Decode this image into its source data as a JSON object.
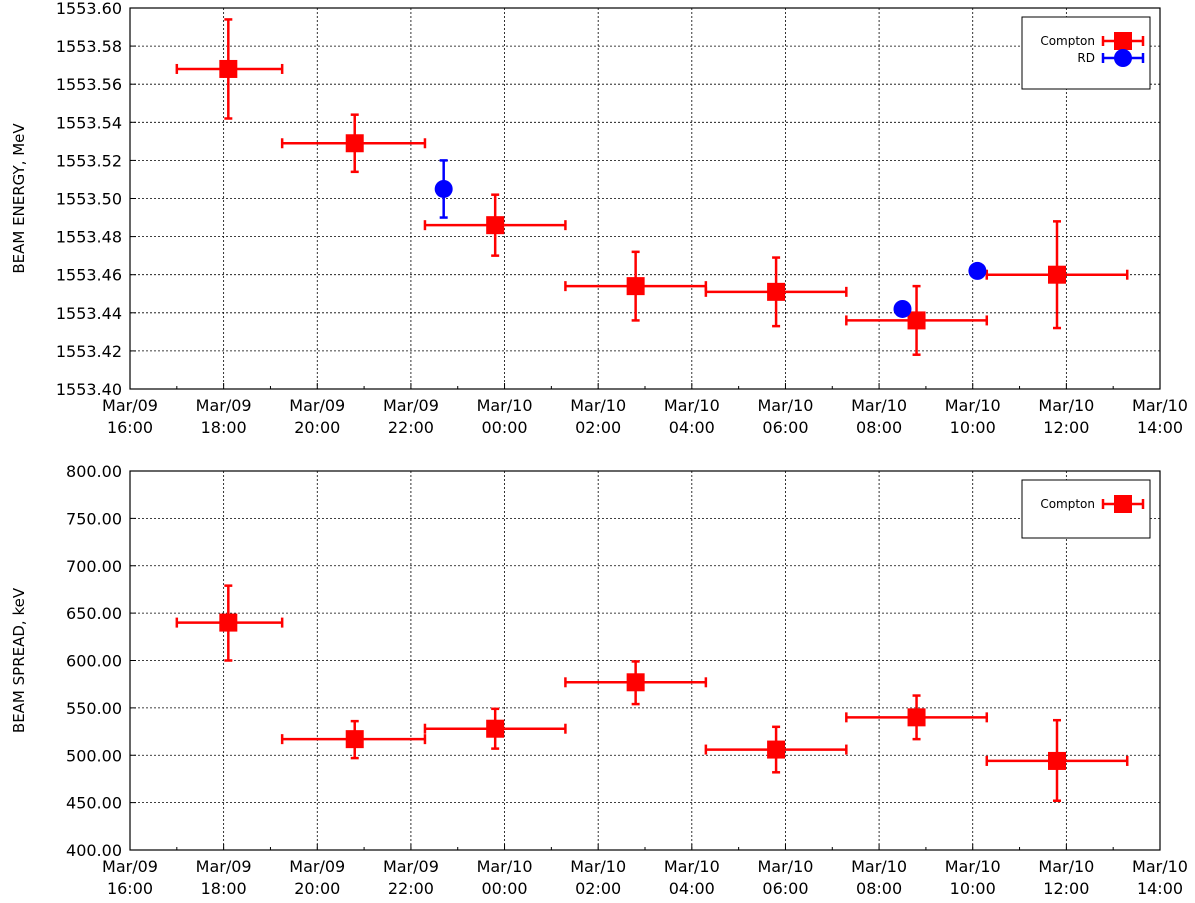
{
  "chart_data": [
    {
      "type": "scatter",
      "ylabel": "BEAM ENERGY, MeV",
      "xlabel": "",
      "ylim": [
        1553.4,
        1553.6
      ],
      "yticks": [
        "1553.40",
        "1553.42",
        "1553.44",
        "1553.46",
        "1553.48",
        "1553.50",
        "1553.52",
        "1553.54",
        "1553.56",
        "1553.58",
        "1553.60"
      ],
      "x_tick_labels": [
        [
          "Mar/09",
          "16:00"
        ],
        [
          "Mar/09",
          "18:00"
        ],
        [
          "Mar/09",
          "20:00"
        ],
        [
          "Mar/09",
          "22:00"
        ],
        [
          "Mar/10",
          "00:00"
        ],
        [
          "Mar/10",
          "02:00"
        ],
        [
          "Mar/10",
          "04:00"
        ],
        [
          "Mar/10",
          "06:00"
        ],
        [
          "Mar/10",
          "08:00"
        ],
        [
          "Mar/10",
          "10:00"
        ],
        [
          "Mar/10",
          "12:00"
        ],
        [
          "Mar/10",
          "14:00"
        ]
      ],
      "xlim_hours": [
        16,
        38
      ],
      "grid": true,
      "legend_position": "top-right",
      "series": [
        {
          "name": "Compton",
          "marker": "square",
          "color": "#ff0000",
          "points": [
            {
              "x": 18.1,
              "xerr": [
                17.0,
                19.25
              ],
              "y": 1553.568,
              "yerr": [
                1553.542,
                1553.594
              ]
            },
            {
              "x": 20.8,
              "xerr": [
                19.25,
                22.3
              ],
              "y": 1553.529,
              "yerr": [
                1553.514,
                1553.544
              ]
            },
            {
              "x": 23.8,
              "xerr": [
                22.3,
                25.3
              ],
              "y": 1553.486,
              "yerr": [
                1553.47,
                1553.502
              ]
            },
            {
              "x": 26.8,
              "xerr": [
                25.3,
                28.3
              ],
              "y": 1553.454,
              "yerr": [
                1553.436,
                1553.472
              ]
            },
            {
              "x": 29.8,
              "xerr": [
                28.3,
                31.3
              ],
              "y": 1553.451,
              "yerr": [
                1553.433,
                1553.469
              ]
            },
            {
              "x": 32.8,
              "xerr": [
                31.3,
                34.3
              ],
              "y": 1553.436,
              "yerr": [
                1553.418,
                1553.454
              ]
            },
            {
              "x": 35.8,
              "xerr": [
                34.3,
                37.3
              ],
              "y": 1553.46,
              "yerr": [
                1553.432,
                1553.488
              ]
            }
          ]
        },
        {
          "name": "RD",
          "marker": "circle",
          "color": "#0000ff",
          "points": [
            {
              "x": 22.7,
              "y": 1553.505,
              "yerr": [
                1553.49,
                1553.52
              ]
            },
            {
              "x": 32.5,
              "y": 1553.442,
              "yerr": [
                1553.44,
                1553.444
              ]
            },
            {
              "x": 34.1,
              "y": 1553.462,
              "yerr": [
                1553.46,
                1553.464
              ]
            }
          ]
        }
      ]
    },
    {
      "type": "scatter",
      "ylabel": "BEAM SPREAD, keV",
      "xlabel": "",
      "ylim": [
        400,
        800
      ],
      "yticks": [
        "400.00",
        "450.00",
        "500.00",
        "550.00",
        "600.00",
        "650.00",
        "700.00",
        "750.00",
        "800.00"
      ],
      "x_tick_labels": [
        [
          "Mar/09",
          "16:00"
        ],
        [
          "Mar/09",
          "18:00"
        ],
        [
          "Mar/09",
          "20:00"
        ],
        [
          "Mar/09",
          "22:00"
        ],
        [
          "Mar/10",
          "00:00"
        ],
        [
          "Mar/10",
          "02:00"
        ],
        [
          "Mar/10",
          "04:00"
        ],
        [
          "Mar/10",
          "06:00"
        ],
        [
          "Mar/10",
          "08:00"
        ],
        [
          "Mar/10",
          "10:00"
        ],
        [
          "Mar/10",
          "12:00"
        ],
        [
          "Mar/10",
          "14:00"
        ]
      ],
      "xlim_hours": [
        16,
        38
      ],
      "grid": true,
      "legend_position": "top-right",
      "series": [
        {
          "name": "Compton",
          "marker": "square",
          "color": "#ff0000",
          "points": [
            {
              "x": 18.1,
              "xerr": [
                17.0,
                19.25
              ],
              "y": 640,
              "yerr": [
                600,
                679
              ]
            },
            {
              "x": 20.8,
              "xerr": [
                19.25,
                22.3
              ],
              "y": 517,
              "yerr": [
                497,
                536
              ]
            },
            {
              "x": 23.8,
              "xerr": [
                22.3,
                25.3
              ],
              "y": 528,
              "yerr": [
                507,
                549
              ]
            },
            {
              "x": 26.8,
              "xerr": [
                25.3,
                28.3
              ],
              "y": 577,
              "yerr": [
                554,
                599
              ]
            },
            {
              "x": 29.8,
              "xerr": [
                28.3,
                31.3
              ],
              "y": 506,
              "yerr": [
                482,
                530
              ]
            },
            {
              "x": 32.8,
              "xerr": [
                31.3,
                34.3
              ],
              "y": 540,
              "yerr": [
                517,
                563
              ]
            },
            {
              "x": 35.8,
              "xerr": [
                34.3,
                37.3
              ],
              "y": 494,
              "yerr": [
                452,
                537
              ]
            }
          ]
        }
      ]
    }
  ]
}
